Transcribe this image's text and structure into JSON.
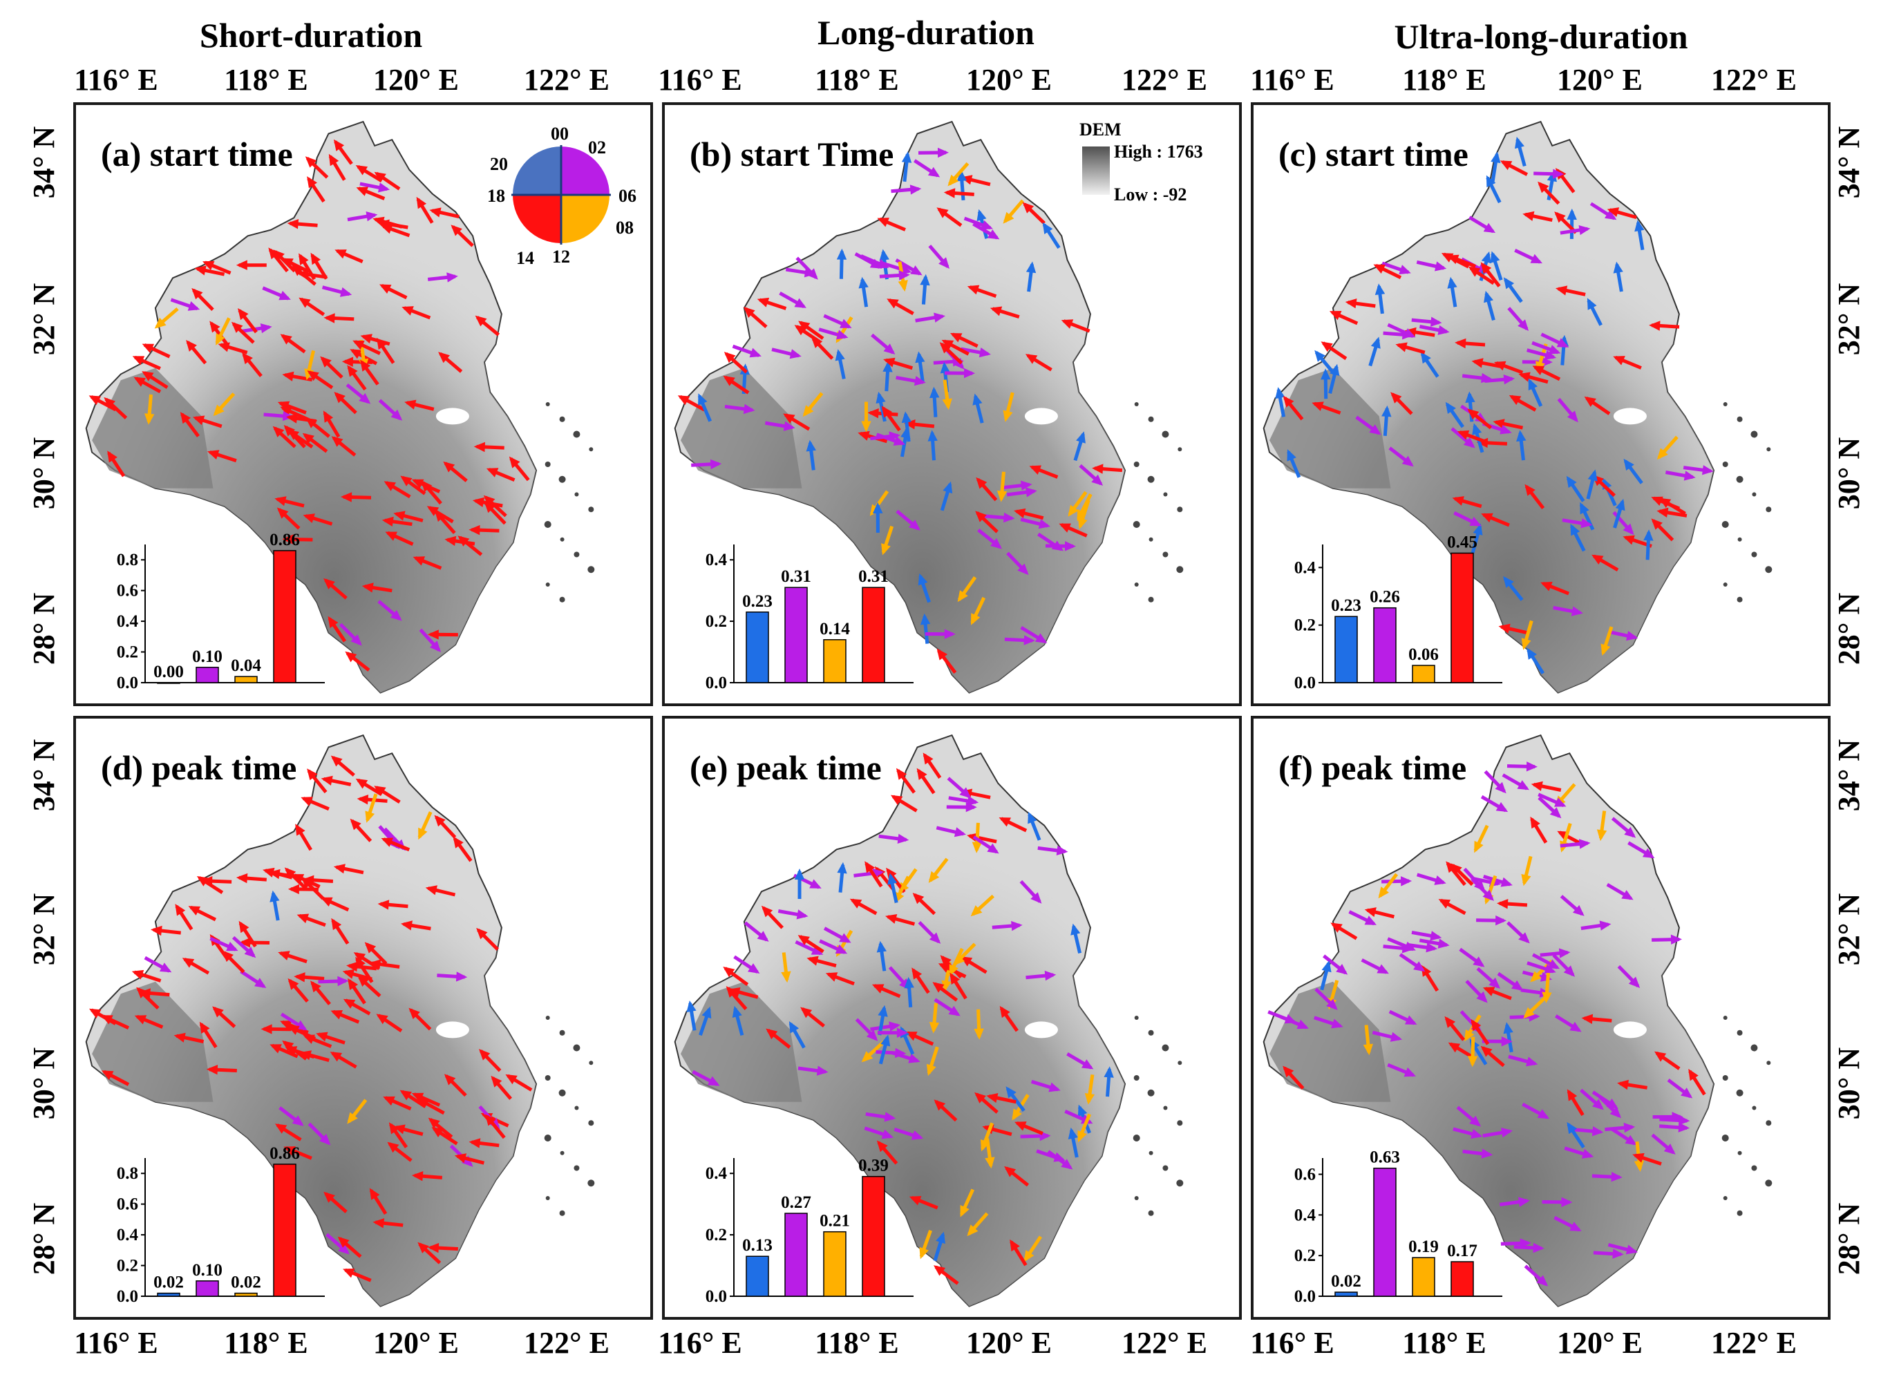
{
  "column_titles": [
    "Short-duration",
    "Long-duration",
    "Ultra-long-duration"
  ],
  "lon_ticks": [
    "116° E",
    "118° E",
    "120° E",
    "122° E"
  ],
  "lat_ticks": [
    "34° N",
    "32° N",
    "30° N",
    "28° N"
  ],
  "colors": {
    "c00_06": "#1f6fe6",
    "c06_12": "#b91ee6",
    "c12_18": "#ffb000",
    "c18_24": "#ff1010",
    "frame": "#1a1a1a",
    "land": "#d9d9d9"
  },
  "clock_legend": {
    "labels": [
      "00",
      "02",
      "06",
      "08",
      "12",
      "14",
      "18",
      "20"
    ]
  },
  "dem_legend": {
    "title": "DEM",
    "high": "High : 1763",
    "low": "Low : -92"
  },
  "panels": [
    {
      "id": "a",
      "label": "(a) start time",
      "yticks": [
        "0.0",
        "0.2",
        "0.4",
        "0.6",
        "0.8"
      ],
      "ymax": 0.9,
      "bars": [
        {
          "value": 0.0,
          "label": "0.00"
        },
        {
          "value": 0.1,
          "label": "0.10"
        },
        {
          "value": 0.04,
          "label": "0.04"
        },
        {
          "value": 0.86,
          "label": "0.86"
        }
      ]
    },
    {
      "id": "b",
      "label": "(b) start Time",
      "yticks": [
        "0.0",
        "0.2",
        "0.4"
      ],
      "ymax": 0.45,
      "bars": [
        {
          "value": 0.23,
          "label": "0.23"
        },
        {
          "value": 0.31,
          "label": "0.31"
        },
        {
          "value": 0.14,
          "label": "0.14"
        },
        {
          "value": 0.31,
          "label": "0.31"
        }
      ]
    },
    {
      "id": "c",
      "label": "(c) start time",
      "yticks": [
        "0.0",
        "0.2",
        "0.4"
      ],
      "ymax": 0.48,
      "bars": [
        {
          "value": 0.23,
          "label": "0.23"
        },
        {
          "value": 0.26,
          "label": "0.26"
        },
        {
          "value": 0.06,
          "label": "0.06"
        },
        {
          "value": 0.45,
          "label": "0.45"
        }
      ]
    },
    {
      "id": "d",
      "label": "(d) peak time",
      "yticks": [
        "0.0",
        "0.2",
        "0.4",
        "0.6",
        "0.8"
      ],
      "ymax": 0.9,
      "bars": [
        {
          "value": 0.02,
          "label": "0.02"
        },
        {
          "value": 0.1,
          "label": "0.10"
        },
        {
          "value": 0.02,
          "label": "0.02"
        },
        {
          "value": 0.86,
          "label": "0.86"
        }
      ]
    },
    {
      "id": "e",
      "label": "(e) peak time",
      "yticks": [
        "0.0",
        "0.2",
        "0.4"
      ],
      "ymax": 0.45,
      "bars": [
        {
          "value": 0.13,
          "label": "0.13"
        },
        {
          "value": 0.27,
          "label": "0.27"
        },
        {
          "value": 0.21,
          "label": "0.21"
        },
        {
          "value": 0.39,
          "label": "0.39"
        }
      ]
    },
    {
      "id": "f",
      "label": "(f) peak time",
      "yticks": [
        "0.0",
        "0.2",
        "0.4",
        "0.6"
      ],
      "ymax": 0.68,
      "bars": [
        {
          "value": 0.02,
          "label": "0.02"
        },
        {
          "value": 0.63,
          "label": "0.63"
        },
        {
          "value": 0.19,
          "label": "0.19"
        },
        {
          "value": 0.17,
          "label": "0.17"
        }
      ]
    }
  ]
}
